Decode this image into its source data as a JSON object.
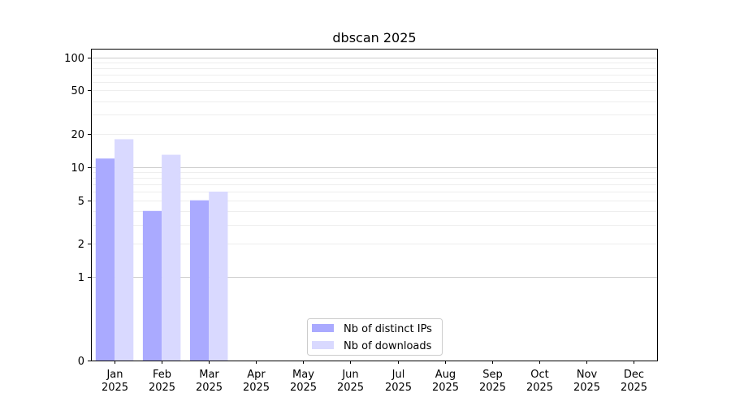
{
  "chart_data": {
    "type": "bar",
    "title": "dbscan 2025",
    "categories": [
      "Jan\n2025",
      "Feb\n2025",
      "Mar\n2025",
      "Apr\n2025",
      "May\n2025",
      "Jun\n2025",
      "Jul\n2025",
      "Aug\n2025",
      "Sep\n2025",
      "Oct\n2025",
      "Nov\n2025",
      "Dec\n2025"
    ],
    "series": [
      {
        "name": "Nb of distinct IPs",
        "values": [
          12,
          4,
          5,
          0,
          0,
          0,
          0,
          0,
          0,
          0,
          0,
          0
        ],
        "color": "#aaaaff"
      },
      {
        "name": "Nb of downloads",
        "values": [
          18,
          13,
          6,
          0,
          0,
          0,
          0,
          0,
          0,
          0,
          0,
          0
        ],
        "color": "#d9d9ff"
      }
    ],
    "y_scale": "symlog",
    "yticks": [
      0,
      1,
      2,
      5,
      10,
      20,
      50,
      100
    ],
    "ylim": [
      0,
      120
    ],
    "grid": true,
    "legend_position": "lower center"
  }
}
